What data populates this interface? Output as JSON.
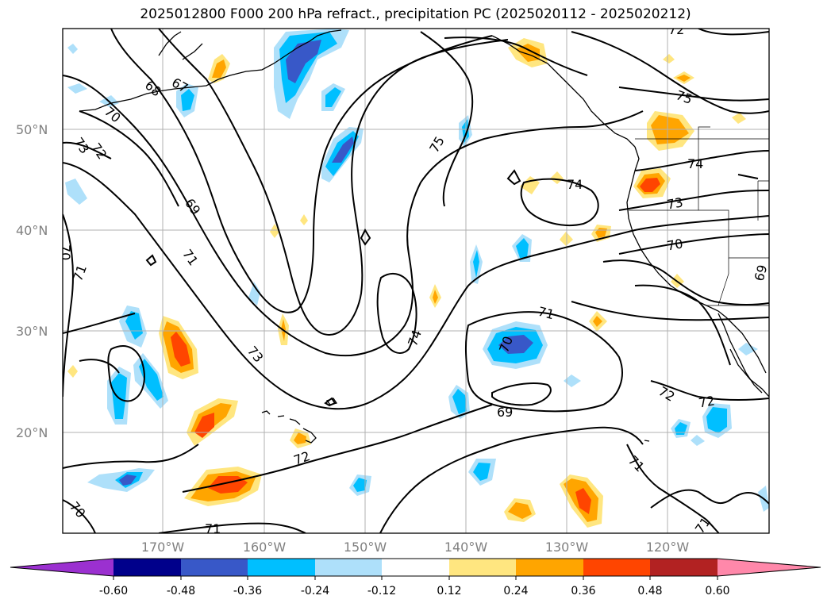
{
  "title": "2025012800 F000 200 hPa refract., precipitation PC (2025020112 - 2025020212)",
  "lat_labels": [
    "50°N",
    "40°N",
    "30°N",
    "20°N"
  ],
  "lon_labels": [
    "170°W",
    "160°W",
    "150°W",
    "140°W",
    "130°W",
    "120°W"
  ],
  "colorbar": {
    "ticks": [
      "-0.60",
      "-0.48",
      "-0.36",
      "-0.24",
      "-0.12",
      "0.12",
      "0.24",
      "0.36",
      "0.48",
      "0.60"
    ],
    "colors": [
      "#9b30d0",
      "#00008b",
      "#3858c8",
      "#00bfff",
      "#aee0fa",
      "#ffffff",
      "#ffe680",
      "#ffa500",
      "#ff4500",
      "#b22222",
      "#ff88aa"
    ]
  },
  "contour_labels": [
    "72",
    "67",
    "68",
    "70",
    "73",
    "72",
    "69",
    "71",
    "70",
    "71",
    "73",
    "75",
    "74",
    "75",
    "74",
    "73",
    "70",
    "69",
    "71",
    "70",
    "74",
    "69",
    "72",
    "72",
    "72",
    "71",
    "71",
    "71",
    "70"
  ],
  "colors": {
    "contour": "#000000",
    "grid": "#b0b0b0",
    "coast": "#000000"
  }
}
